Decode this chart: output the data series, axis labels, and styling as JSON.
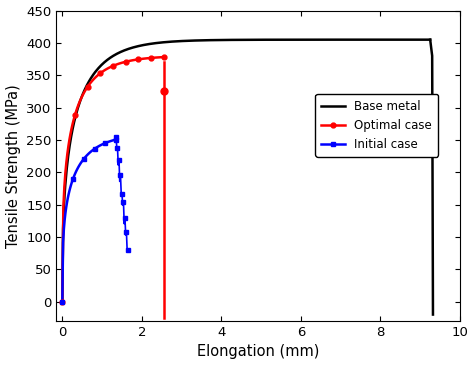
{
  "title": "",
  "xlabel": "Elongation (mm)",
  "ylabel": "Tensile Strength (MPa)",
  "xlim": [
    -0.15,
    10
  ],
  "ylim": [
    -30,
    450
  ],
  "xticks": [
    0,
    2,
    4,
    6,
    8,
    10
  ],
  "yticks": [
    0,
    50,
    100,
    150,
    200,
    250,
    300,
    350,
    400,
    450
  ],
  "legend_entries": [
    "Base metal",
    "Optimal case",
    "Initial case"
  ],
  "legend_colors": [
    "black",
    "red",
    "blue"
  ],
  "background_color": "#ffffff",
  "base_metal_color": "#000000",
  "optimal_color": "#ff0000",
  "initial_color": "#0000ff"
}
